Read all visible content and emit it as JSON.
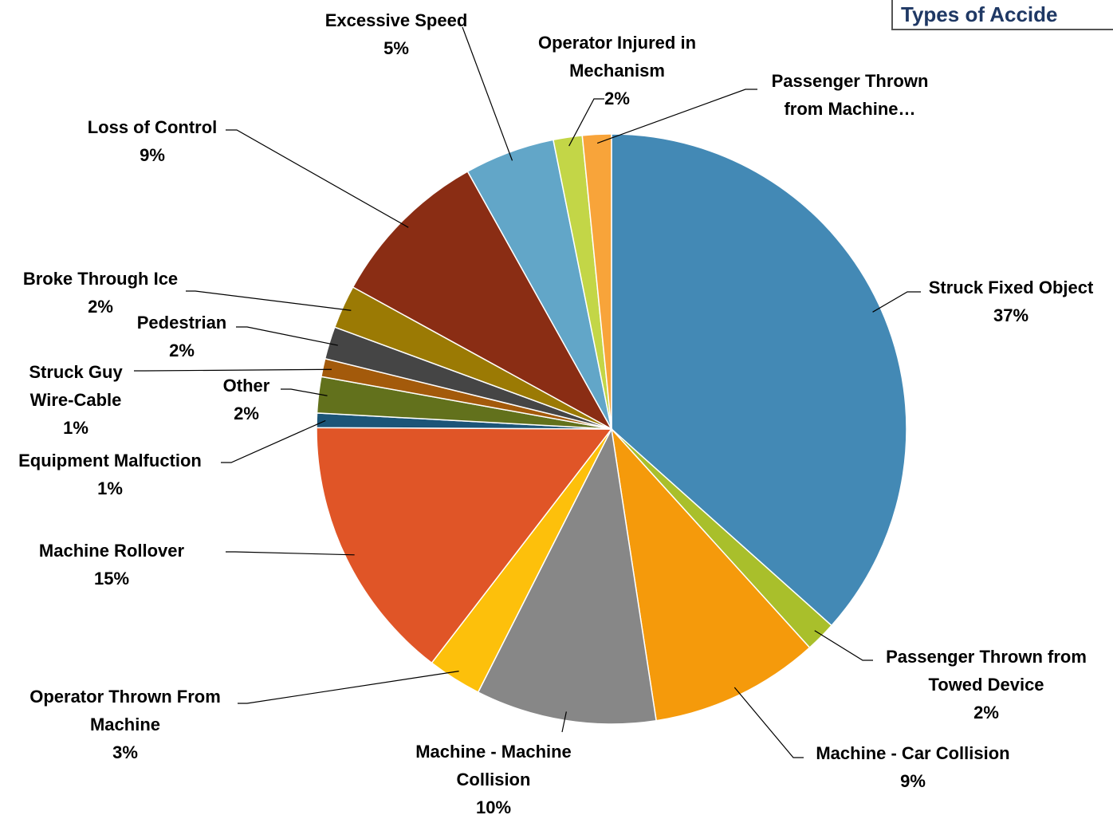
{
  "chart_data": {
    "type": "pie",
    "title": "Types of Accide",
    "categories": [
      "Struck Fixed Object",
      "Passenger Thrown from Towed Device",
      "Machine - Car Collision",
      "Machine - Machine Collision",
      "Operator Thrown From Machine",
      "Machine Rollover",
      "Equipment Malfuction",
      "Other",
      "Struck Guy Wire-Cable",
      "Pedestrian",
      "Broke Through Ice",
      "Loss of Control",
      "Excessive Speed",
      "Operator Injured in Mechanism",
      "Passenger Thrown from Machine…"
    ],
    "values": [
      37,
      1.7,
      9.4,
      10,
      3,
      14.8,
      0.8,
      2,
      1,
      1.8,
      2.4,
      9,
      5,
      1.6,
      1.6
    ],
    "value_labels": [
      "37%",
      "2%",
      "9%",
      "10%",
      "3%",
      "15%",
      "1%",
      "2%",
      "1%",
      "2%",
      "2%",
      "9%",
      "5%",
      "2%",
      null
    ],
    "colors": [
      "#4389b5",
      "#a9bf2b",
      "#f59a0b",
      "#878787",
      "#fdc00b",
      "#e05527",
      "#1c5578",
      "#62711c",
      "#a35a0b",
      "#454545",
      "#9b7a04",
      "#8a2d14",
      "#62a6c8",
      "#c3d647",
      "#f8a43a"
    ]
  }
}
